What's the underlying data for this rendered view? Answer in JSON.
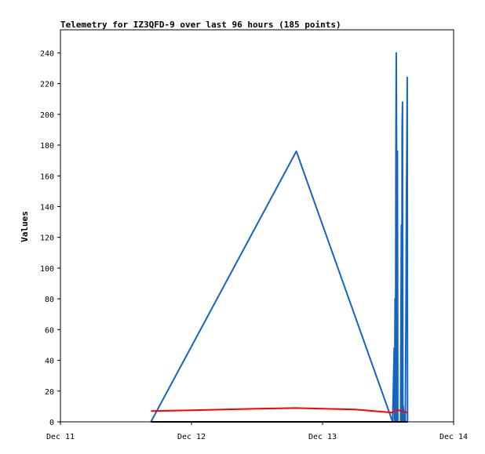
{
  "chart_data": {
    "type": "line",
    "title": "Telemetry for IZ3QFD-9 over last 96 hours (185 points)",
    "xlabel": "",
    "ylabel": "Values",
    "x_ticks": [
      "Dec 11",
      "Dec 12",
      "Dec 13",
      "Dec 14"
    ],
    "xlim": [
      "Dec 11 00:00",
      "Dec 14 00:00"
    ],
    "ylim": [
      0,
      255
    ],
    "y_ticks": [
      0,
      20,
      40,
      60,
      80,
      100,
      120,
      140,
      160,
      180,
      200,
      220,
      240
    ],
    "grid": false,
    "legend": "none",
    "series": [
      {
        "color": "#1565c0",
        "points": [
          [
            "Dec 11 16:34",
            0
          ],
          [
            "Dec 12 19:12",
            176
          ],
          [
            "Dec 13 12:50",
            0
          ],
          [
            "Dec 13 13:07",
            48
          ],
          [
            "Dec 13 13:12",
            0
          ],
          [
            "Dec 13 13:17",
            80
          ],
          [
            "Dec 13 13:21",
            0
          ],
          [
            "Dec 13 13:26",
            176
          ],
          [
            "Dec 13 13:30",
            240
          ],
          [
            "Dec 13 13:34",
            176
          ],
          [
            "Dec 13 13:38",
            0
          ],
          [
            "Dec 13 13:43",
            176
          ],
          [
            "Dec 13 13:47",
            0
          ],
          [
            "Dec 13 14:00",
            0
          ],
          [
            "Dec 13 14:17",
            0
          ],
          [
            "Dec 13 14:26",
            128
          ],
          [
            "Dec 13 14:30",
            0
          ],
          [
            "Dec 13 14:34",
            192
          ],
          [
            "Dec 13 14:39",
            208
          ],
          [
            "Dec 13 14:43",
            0
          ],
          [
            "Dec 13 14:47",
            10
          ],
          [
            "Dec 13 14:56",
            0
          ],
          [
            "Dec 13 15:09",
            0
          ],
          [
            "Dec 13 15:17",
            70
          ],
          [
            "Dec 13 15:22",
            146
          ],
          [
            "Dec 13 15:26",
            176
          ],
          [
            "Dec 13 15:30",
            224
          ],
          [
            "Dec 13 15:34",
            0
          ]
        ]
      },
      {
        "color": "#ff0000",
        "points": [
          [
            "Dec 11 16:34",
            7
          ],
          [
            "Dec 12 00:00",
            7.5
          ],
          [
            "Dec 12 12:00",
            8.5
          ],
          [
            "Dec 12 19:12",
            9
          ],
          [
            "Dec 13 06:00",
            8
          ],
          [
            "Dec 13 12:50",
            6
          ],
          [
            "Dec 13 13:17",
            7.5
          ],
          [
            "Dec 13 14:00",
            7.5
          ],
          [
            "Dec 13 15:34",
            6
          ]
        ]
      },
      {
        "color": "#000000",
        "points": [
          [
            "Dec 11 16:34",
            0
          ],
          [
            "Dec 13 15:34",
            0
          ]
        ]
      }
    ]
  }
}
